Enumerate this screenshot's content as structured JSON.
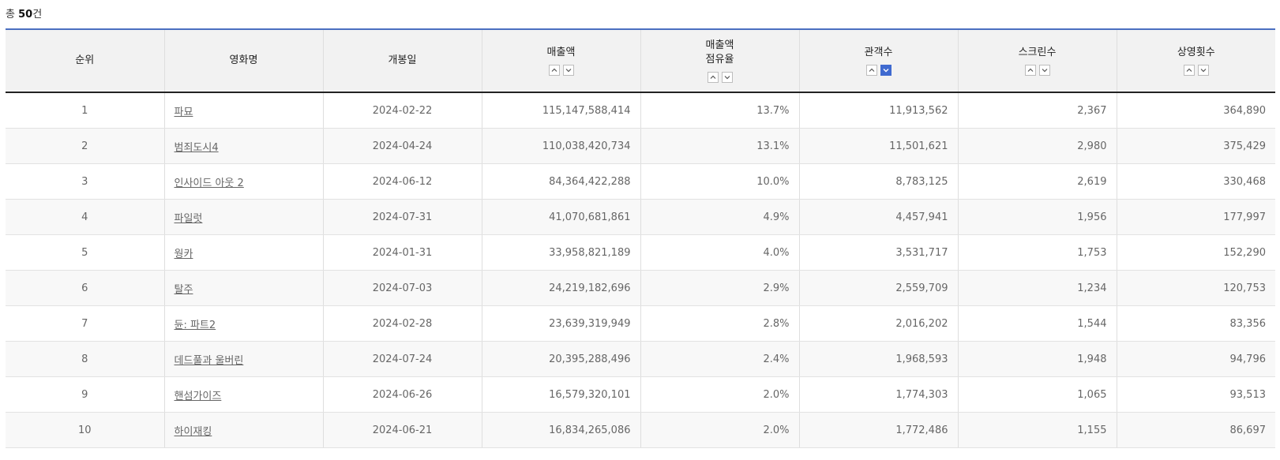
{
  "total": {
    "prefix": "총 ",
    "count": "50",
    "suffix": "건"
  },
  "columns": [
    {
      "label_1": "순위",
      "label_2": ""
    },
    {
      "label_1": "영화명",
      "label_2": ""
    },
    {
      "label_1": "개봉일",
      "label_2": ""
    },
    {
      "label_1": "매출액",
      "label_2": ""
    },
    {
      "label_1": "매출액",
      "label_2": "점유율"
    },
    {
      "label_1": "관객수",
      "label_2": ""
    },
    {
      "label_1": "스크린수",
      "label_2": ""
    },
    {
      "label_1": "상영횟수",
      "label_2": ""
    }
  ],
  "active_sort": {
    "column": "관객수",
    "direction": "desc"
  },
  "accent_color": "#3f6ad0",
  "rows": [
    {
      "rank": "1",
      "title": "파묘",
      "release": "2024-02-22",
      "sales": "115,147,588,414",
      "share": "13.7%",
      "audience": "11,913,562",
      "screens": "2,367",
      "shows": "364,890"
    },
    {
      "rank": "2",
      "title": "범죄도시4",
      "release": "2024-04-24",
      "sales": "110,038,420,734",
      "share": "13.1%",
      "audience": "11,501,621",
      "screens": "2,980",
      "shows": "375,429"
    },
    {
      "rank": "3",
      "title": "인사이드 아웃 2",
      "release": "2024-06-12",
      "sales": "84,364,422,288",
      "share": "10.0%",
      "audience": "8,783,125",
      "screens": "2,619",
      "shows": "330,468"
    },
    {
      "rank": "4",
      "title": "파일럿",
      "release": "2024-07-31",
      "sales": "41,070,681,861",
      "share": "4.9%",
      "audience": "4,457,941",
      "screens": "1,956",
      "shows": "177,997"
    },
    {
      "rank": "5",
      "title": "웡카",
      "release": "2024-01-31",
      "sales": "33,958,821,189",
      "share": "4.0%",
      "audience": "3,531,717",
      "screens": "1,753",
      "shows": "152,290"
    },
    {
      "rank": "6",
      "title": "탈주",
      "release": "2024-07-03",
      "sales": "24,219,182,696",
      "share": "2.9%",
      "audience": "2,559,709",
      "screens": "1,234",
      "shows": "120,753"
    },
    {
      "rank": "7",
      "title": "듄: 파트2",
      "release": "2024-02-28",
      "sales": "23,639,319,949",
      "share": "2.8%",
      "audience": "2,016,202",
      "screens": "1,544",
      "shows": "83,356"
    },
    {
      "rank": "8",
      "title": "데드풀과 울버린",
      "release": "2024-07-24",
      "sales": "20,395,288,496",
      "share": "2.4%",
      "audience": "1,968,593",
      "screens": "1,948",
      "shows": "94,796"
    },
    {
      "rank": "9",
      "title": "핸섬가이즈",
      "release": "2024-06-26",
      "sales": "16,579,320,101",
      "share": "2.0%",
      "audience": "1,774,303",
      "screens": "1,065",
      "shows": "93,513"
    },
    {
      "rank": "10",
      "title": "하이재킹",
      "release": "2024-06-21",
      "sales": "16,834,265,086",
      "share": "2.0%",
      "audience": "1,772,486",
      "screens": "1,155",
      "shows": "86,697"
    }
  ]
}
